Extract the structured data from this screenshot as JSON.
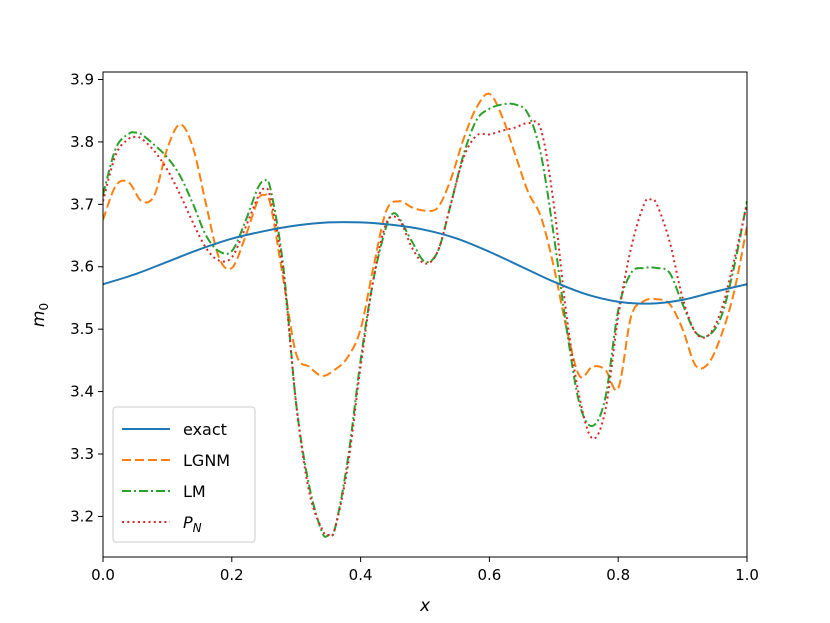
{
  "chart_data": {
    "type": "line",
    "title": "",
    "xlabel": "x",
    "ylabel_base": "m",
    "ylabel_sub": "0",
    "xlim": [
      0.0,
      1.0
    ],
    "ylim": [
      3.135,
      3.912
    ],
    "xticks": [
      0.0,
      0.2,
      0.4,
      0.6,
      0.8,
      1.0
    ],
    "xtick_labels": [
      "0.0",
      "0.2",
      "0.4",
      "0.6",
      "0.8",
      "1.0"
    ],
    "yticks": [
      3.2,
      3.3,
      3.4,
      3.5,
      3.6,
      3.7,
      3.8,
      3.9
    ],
    "ytick_labels": [
      "3.2",
      "3.3",
      "3.4",
      "3.5",
      "3.6",
      "3.7",
      "3.8",
      "3.9"
    ],
    "grid": false,
    "legend_position": "lower-left",
    "series": [
      {
        "name": "exact",
        "style": "solid",
        "color": "#1f77b4",
        "x": [
          0.0,
          0.05,
          0.1,
          0.15,
          0.2,
          0.25,
          0.3,
          0.35,
          0.4,
          0.45,
          0.5,
          0.55,
          0.6,
          0.65,
          0.7,
          0.75,
          0.8,
          0.85,
          0.9,
          0.95,
          1.0
        ],
        "y": [
          3.572,
          3.588,
          3.608,
          3.628,
          3.645,
          3.657,
          3.666,
          3.671,
          3.671,
          3.667,
          3.659,
          3.645,
          3.624,
          3.6,
          3.576,
          3.556,
          3.544,
          3.541,
          3.547,
          3.56,
          3.572
        ]
      },
      {
        "name": "LGNM",
        "style": "dashed",
        "color": "#ff7f0e",
        "x": [
          0.0,
          0.02,
          0.04,
          0.06,
          0.08,
          0.1,
          0.12,
          0.14,
          0.16,
          0.18,
          0.2,
          0.22,
          0.24,
          0.25,
          0.26,
          0.28,
          0.3,
          0.32,
          0.34,
          0.36,
          0.38,
          0.4,
          0.42,
          0.44,
          0.46,
          0.48,
          0.5,
          0.52,
          0.54,
          0.56,
          0.58,
          0.6,
          0.62,
          0.64,
          0.66,
          0.68,
          0.7,
          0.72,
          0.74,
          0.76,
          0.78,
          0.8,
          0.82,
          0.84,
          0.86,
          0.88,
          0.9,
          0.92,
          0.94,
          0.96,
          0.98,
          1.0
        ],
        "y": [
          3.675,
          3.73,
          3.735,
          3.705,
          3.715,
          3.79,
          3.828,
          3.79,
          3.7,
          3.615,
          3.598,
          3.645,
          3.705,
          3.715,
          3.7,
          3.58,
          3.46,
          3.44,
          3.425,
          3.435,
          3.455,
          3.5,
          3.6,
          3.69,
          3.705,
          3.695,
          3.69,
          3.695,
          3.74,
          3.805,
          3.855,
          3.877,
          3.84,
          3.78,
          3.72,
          3.68,
          3.6,
          3.5,
          3.425,
          3.44,
          3.435,
          3.405,
          3.52,
          3.545,
          3.548,
          3.54,
          3.5,
          3.442,
          3.445,
          3.49,
          3.56,
          3.665
        ]
      },
      {
        "name": "LM",
        "style": "dashdot",
        "color": "#2ca02c",
        "x": [
          0.0,
          0.02,
          0.04,
          0.05,
          0.06,
          0.08,
          0.1,
          0.12,
          0.14,
          0.16,
          0.18,
          0.2,
          0.22,
          0.24,
          0.25,
          0.26,
          0.28,
          0.3,
          0.32,
          0.34,
          0.35,
          0.36,
          0.38,
          0.4,
          0.42,
          0.44,
          0.45,
          0.46,
          0.48,
          0.5,
          0.52,
          0.54,
          0.56,
          0.58,
          0.6,
          0.62,
          0.64,
          0.66,
          0.68,
          0.7,
          0.72,
          0.74,
          0.76,
          0.78,
          0.8,
          0.82,
          0.84,
          0.86,
          0.88,
          0.9,
          0.92,
          0.94,
          0.96,
          0.98,
          1.0
        ],
        "y": [
          3.715,
          3.79,
          3.813,
          3.815,
          3.812,
          3.795,
          3.775,
          3.745,
          3.7,
          3.65,
          3.625,
          3.625,
          3.67,
          3.725,
          3.737,
          3.725,
          3.6,
          3.38,
          3.25,
          3.175,
          3.17,
          3.18,
          3.29,
          3.45,
          3.58,
          3.665,
          3.685,
          3.678,
          3.64,
          3.608,
          3.625,
          3.7,
          3.78,
          3.835,
          3.853,
          3.86,
          3.86,
          3.845,
          3.78,
          3.65,
          3.5,
          3.38,
          3.345,
          3.39,
          3.53,
          3.59,
          3.598,
          3.598,
          3.59,
          3.54,
          3.495,
          3.49,
          3.52,
          3.6,
          3.705
        ]
      },
      {
        "name": "P",
        "name_sub": "N",
        "style": "dotted",
        "color": "#d62728",
        "x": [
          0.0,
          0.02,
          0.04,
          0.05,
          0.06,
          0.08,
          0.1,
          0.12,
          0.14,
          0.16,
          0.18,
          0.2,
          0.22,
          0.24,
          0.25,
          0.26,
          0.28,
          0.3,
          0.32,
          0.34,
          0.35,
          0.36,
          0.38,
          0.4,
          0.42,
          0.44,
          0.46,
          0.48,
          0.5,
          0.52,
          0.54,
          0.56,
          0.58,
          0.6,
          0.62,
          0.64,
          0.66,
          0.68,
          0.7,
          0.72,
          0.74,
          0.76,
          0.78,
          0.8,
          0.82,
          0.84,
          0.85,
          0.86,
          0.88,
          0.9,
          0.92,
          0.94,
          0.96,
          0.98,
          1.0
        ],
        "y": [
          3.705,
          3.78,
          3.805,
          3.808,
          3.805,
          3.785,
          3.755,
          3.715,
          3.67,
          3.63,
          3.61,
          3.615,
          3.66,
          3.71,
          3.725,
          3.71,
          3.59,
          3.38,
          3.24,
          3.18,
          3.17,
          3.18,
          3.28,
          3.44,
          3.58,
          3.67,
          3.675,
          3.63,
          3.605,
          3.625,
          3.7,
          3.775,
          3.81,
          3.812,
          3.818,
          3.823,
          3.83,
          3.82,
          3.7,
          3.52,
          3.39,
          3.325,
          3.37,
          3.52,
          3.63,
          3.7,
          3.708,
          3.7,
          3.64,
          3.55,
          3.495,
          3.49,
          3.53,
          3.61,
          3.7
        ]
      }
    ]
  }
}
